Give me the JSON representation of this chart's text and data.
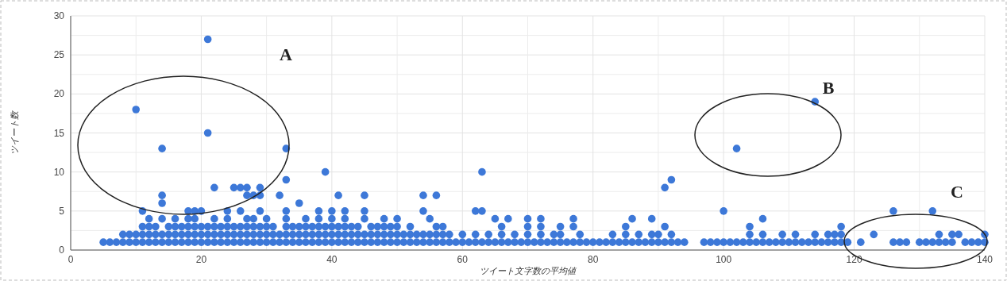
{
  "chart_data": {
    "type": "scatter",
    "xlabel": "ツイート文字数の平均値",
    "ylabel": "ツイート数",
    "xlim": [
      0,
      140
    ],
    "ylim": [
      0,
      30
    ],
    "xticks": [
      0,
      20,
      40,
      60,
      80,
      100,
      120,
      140
    ],
    "yticks": [
      0,
      5,
      10,
      15,
      20,
      25,
      30
    ],
    "grid": true,
    "marker": "circle",
    "annotations": [
      "A",
      "B",
      "C"
    ],
    "series": [
      {
        "color": "#3d78d8",
        "x": [
          5,
          6,
          7,
          8,
          9,
          10,
          11,
          12,
          13,
          14,
          15,
          16,
          17,
          18,
          19,
          20,
          21,
          22,
          23,
          24,
          25,
          26,
          27,
          28,
          29,
          30,
          31,
          32,
          33,
          34,
          35,
          36,
          37,
          38,
          39,
          40,
          41,
          42,
          43,
          44,
          45,
          46,
          47,
          48,
          49,
          50,
          51,
          52,
          53,
          54,
          55,
          56,
          57,
          58,
          59,
          60,
          61,
          62,
          63,
          64,
          65,
          66,
          67,
          68,
          69,
          70,
          71,
          72,
          73,
          74,
          75,
          76,
          77,
          78,
          79,
          80,
          81,
          82,
          83,
          84,
          85,
          86,
          87,
          88,
          89,
          90,
          91,
          92,
          93,
          94,
          97,
          98,
          99,
          100,
          101,
          102,
          103,
          104,
          105,
          106,
          107,
          108,
          109,
          110,
          111,
          112,
          113,
          114,
          115,
          116,
          117,
          118,
          119,
          121,
          126,
          127,
          128,
          130,
          131,
          132,
          133,
          134,
          135,
          137,
          138,
          139,
          140
        ],
        "values": [
          1,
          1,
          1,
          1,
          1,
          1,
          1,
          1,
          1,
          1,
          1,
          1,
          1,
          1,
          1,
          1,
          1,
          1,
          1,
          1,
          1,
          1,
          1,
          1,
          1,
          1,
          1,
          1,
          1,
          1,
          1,
          1,
          1,
          1,
          1,
          1,
          1,
          1,
          1,
          1,
          1,
          1,
          1,
          1,
          1,
          1,
          1,
          1,
          1,
          1,
          1,
          1,
          1,
          1,
          1,
          1,
          1,
          1,
          1,
          1,
          1,
          1,
          1,
          1,
          1,
          1,
          1,
          1,
          1,
          1,
          1,
          1,
          1,
          1,
          1,
          1,
          1,
          1,
          1,
          1,
          1,
          1,
          1,
          1,
          1,
          1,
          1,
          1,
          1,
          1,
          1,
          1,
          1,
          1,
          1,
          1,
          1,
          1,
          1,
          1,
          1,
          1,
          1,
          1,
          1,
          1,
          1,
          1,
          1,
          1,
          1,
          1,
          1,
          1,
          1,
          1,
          1,
          1,
          1,
          1,
          1,
          1,
          1,
          1,
          1,
          1,
          1
        ]
      },
      {
        "color": "#3d78d8",
        "x": [
          8,
          9,
          10,
          11,
          12,
          13,
          14,
          15,
          16,
          17,
          18,
          19,
          20,
          21,
          22,
          23,
          24,
          25,
          26,
          27,
          28,
          29,
          30,
          31,
          32,
          33,
          34,
          35,
          36,
          37,
          38,
          39,
          40,
          41,
          42,
          43,
          44,
          45,
          46,
          47,
          48,
          49,
          50,
          51,
          52,
          53,
          54,
          55,
          56,
          57,
          58,
          60,
          62,
          64,
          66,
          68,
          70,
          72,
          74,
          75,
          78,
          83,
          85,
          87,
          89,
          90,
          92,
          104,
          106,
          109,
          111,
          114,
          116,
          117,
          118,
          123,
          133,
          135,
          136,
          140
        ],
        "values": [
          2,
          2,
          2,
          2,
          2,
          2,
          2,
          2,
          2,
          2,
          2,
          2,
          2,
          2,
          2,
          2,
          2,
          2,
          2,
          2,
          2,
          2,
          2,
          2,
          2,
          2,
          2,
          2,
          2,
          2,
          2,
          2,
          2,
          2,
          2,
          2,
          2,
          2,
          2,
          2,
          2,
          2,
          2,
          2,
          2,
          2,
          2,
          2,
          2,
          2,
          2,
          2,
          2,
          2,
          2,
          2,
          2,
          2,
          2,
          2,
          2,
          2,
          2,
          2,
          2,
          2,
          2,
          2,
          2,
          2,
          2,
          2,
          2,
          2,
          2,
          2,
          2,
          2,
          2,
          2
        ]
      },
      {
        "color": "#3d78d8",
        "x": [
          11,
          12,
          13,
          15,
          16,
          17,
          18,
          19,
          20,
          21,
          22,
          23,
          24,
          25,
          26,
          27,
          28,
          29,
          30,
          31,
          33,
          34,
          35,
          36,
          37,
          38,
          39,
          40,
          41,
          42,
          43,
          44,
          46,
          47,
          48,
          49,
          50,
          52,
          56,
          57,
          66,
          70,
          72,
          75,
          77,
          85,
          91,
          104,
          118
        ],
        "values": [
          3,
          3,
          3,
          3,
          3,
          3,
          3,
          3,
          3,
          3,
          3,
          3,
          3,
          3,
          3,
          3,
          3,
          3,
          3,
          3,
          3,
          3,
          3,
          3,
          3,
          3,
          3,
          3,
          3,
          3,
          3,
          3,
          3,
          3,
          3,
          3,
          3,
          3,
          3,
          3,
          3,
          3,
          3,
          3,
          3,
          3,
          3,
          3,
          3
        ]
      },
      {
        "color": "#3d78d8",
        "x": [
          12,
          14,
          16,
          18,
          19,
          22,
          24,
          27,
          28,
          30,
          33,
          36,
          38,
          40,
          42,
          45,
          48,
          50,
          55,
          65,
          67,
          70,
          72,
          77,
          86,
          89,
          106
        ],
        "values": [
          4,
          4,
          4,
          4,
          4,
          4,
          4,
          4,
          4,
          4,
          4,
          4,
          4,
          4,
          4,
          4,
          4,
          4,
          4,
          4,
          4,
          4,
          4,
          4,
          4,
          4,
          4
        ]
      },
      {
        "color": "#3d78d8",
        "x": [
          11,
          18,
          19,
          20,
          24,
          26,
          29,
          33,
          38,
          40,
          42,
          45,
          54,
          62,
          63,
          100,
          126,
          132
        ],
        "values": [
          5,
          5,
          5,
          5,
          5,
          5,
          5,
          5,
          5,
          5,
          5,
          5,
          5,
          5,
          5,
          5,
          5,
          5
        ]
      },
      {
        "color": "#3d78d8",
        "x": [
          14,
          35,
          14,
          27,
          28,
          29,
          32,
          41,
          45,
          54,
          56,
          22,
          25,
          26,
          27,
          29,
          91,
          33,
          92,
          39,
          63
        ],
        "values": [
          6,
          6,
          7,
          7,
          7,
          7,
          7,
          7,
          7,
          7,
          7,
          8,
          8,
          8,
          8,
          8,
          8,
          9,
          9,
          10,
          10
        ]
      },
      {
        "color": "#3d78d8",
        "x": [
          14,
          33,
          102,
          21,
          10,
          114,
          21
        ],
        "values": [
          13,
          13,
          13,
          15,
          18,
          19,
          27
        ]
      }
    ]
  }
}
